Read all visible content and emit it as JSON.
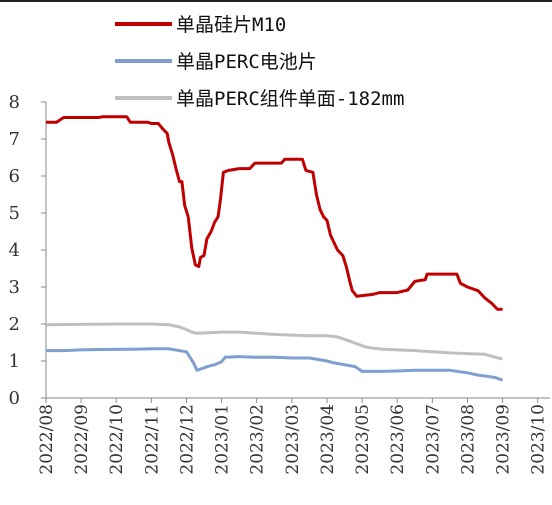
{
  "chart_data": {
    "type": "line",
    "title": "",
    "xlabel": "",
    "ylabel": "",
    "ylim": [
      0,
      8
    ],
    "yticks": [
      "0",
      "1",
      "2",
      "3",
      "4",
      "5",
      "6",
      "7",
      "8"
    ],
    "categories": [
      "2022/08",
      "2022/09",
      "2022/10",
      "2022/11",
      "2022/12",
      "2023/01",
      "2023/02",
      "2023/03",
      "2023/04",
      "2023/05",
      "2023/06",
      "2023/07",
      "2023/08",
      "2023/09",
      "2023/10"
    ],
    "legend_position": "top",
    "series": [
      {
        "name": "单晶硅片M10",
        "color": "#C00000",
        "points": [
          [
            0,
            7.45
          ],
          [
            0.3,
            7.45
          ],
          [
            0.5,
            7.58
          ],
          [
            1.5,
            7.58
          ],
          [
            1.6,
            7.6
          ],
          [
            2.3,
            7.6
          ],
          [
            2.4,
            7.45
          ],
          [
            2.9,
            7.45
          ],
          [
            3,
            7.42
          ],
          [
            3.2,
            7.42
          ],
          [
            3.3,
            7.3
          ],
          [
            3.45,
            7.15
          ],
          [
            3.5,
            6.9
          ],
          [
            3.6,
            6.6
          ],
          [
            3.7,
            6.2
          ],
          [
            3.8,
            5.85
          ],
          [
            3.87,
            5.85
          ],
          [
            3.95,
            5.2
          ],
          [
            4.05,
            4.9
          ],
          [
            4.15,
            4.05
          ],
          [
            4.25,
            3.6
          ],
          [
            4.35,
            3.55
          ],
          [
            4.4,
            3.8
          ],
          [
            4.5,
            3.85
          ],
          [
            4.58,
            4.3
          ],
          [
            4.7,
            4.5
          ],
          [
            4.8,
            4.75
          ],
          [
            4.9,
            4.9
          ],
          [
            4.97,
            5.4
          ],
          [
            5.05,
            6.1
          ],
          [
            5.2,
            6.15
          ],
          [
            5.5,
            6.2
          ],
          [
            5.8,
            6.2
          ],
          [
            5.95,
            6.35
          ],
          [
            6.7,
            6.35
          ],
          [
            6.8,
            6.45
          ],
          [
            7.3,
            6.45
          ],
          [
            7.4,
            6.15
          ],
          [
            7.6,
            6.1
          ],
          [
            7.7,
            5.5
          ],
          [
            7.8,
            5.1
          ],
          [
            7.9,
            4.9
          ],
          [
            8,
            4.8
          ],
          [
            8.1,
            4.4
          ],
          [
            8.2,
            4.2
          ],
          [
            8.3,
            4.0
          ],
          [
            8.45,
            3.85
          ],
          [
            8.55,
            3.55
          ],
          [
            8.65,
            3.15
          ],
          [
            8.72,
            2.9
          ],
          [
            8.85,
            2.75
          ],
          [
            9.3,
            2.8
          ],
          [
            9.5,
            2.85
          ],
          [
            10,
            2.85
          ],
          [
            10.3,
            2.92
          ],
          [
            10.5,
            3.15
          ],
          [
            10.8,
            3.2
          ],
          [
            10.85,
            3.35
          ],
          [
            11.7,
            3.35
          ],
          [
            11.8,
            3.1
          ],
          [
            12,
            3.0
          ],
          [
            12.3,
            2.9
          ],
          [
            12.5,
            2.7
          ],
          [
            12.7,
            2.55
          ],
          [
            12.85,
            2.4
          ],
          [
            13,
            2.4
          ]
        ]
      },
      {
        "name": "单晶PERC电池片",
        "color": "#7F9FCF",
        "points": [
          [
            0,
            1.28
          ],
          [
            0.5,
            1.28
          ],
          [
            1,
            1.3
          ],
          [
            1.5,
            1.31
          ],
          [
            2.5,
            1.32
          ],
          [
            3,
            1.33
          ],
          [
            3.5,
            1.33
          ],
          [
            3.8,
            1.28
          ],
          [
            4,
            1.25
          ],
          [
            4.1,
            1.1
          ],
          [
            4.2,
            0.95
          ],
          [
            4.3,
            0.75
          ],
          [
            4.4,
            0.78
          ],
          [
            4.6,
            0.85
          ],
          [
            4.8,
            0.9
          ],
          [
            5,
            0.98
          ],
          [
            5.1,
            1.1
          ],
          [
            5.5,
            1.12
          ],
          [
            6,
            1.1
          ],
          [
            6.5,
            1.1
          ],
          [
            7,
            1.08
          ],
          [
            7.5,
            1.08
          ],
          [
            8,
            1.0
          ],
          [
            8.2,
            0.95
          ],
          [
            8.5,
            0.9
          ],
          [
            8.8,
            0.85
          ],
          [
            9,
            0.72
          ],
          [
            9.5,
            0.72
          ],
          [
            10,
            0.73
          ],
          [
            10.5,
            0.75
          ],
          [
            11,
            0.75
          ],
          [
            11.5,
            0.75
          ],
          [
            12,
            0.68
          ],
          [
            12.3,
            0.62
          ],
          [
            12.6,
            0.58
          ],
          [
            12.8,
            0.55
          ],
          [
            13,
            0.48
          ]
        ]
      },
      {
        "name": "单晶PERC组件单面-182mm",
        "color": "#BFBFBF",
        "points": [
          [
            0,
            1.98
          ],
          [
            1,
            1.99
          ],
          [
            2,
            2.0
          ],
          [
            3,
            2.0
          ],
          [
            3.5,
            1.98
          ],
          [
            3.8,
            1.92
          ],
          [
            4,
            1.85
          ],
          [
            4.15,
            1.78
          ],
          [
            4.3,
            1.75
          ],
          [
            5,
            1.78
          ],
          [
            5.5,
            1.78
          ],
          [
            6,
            1.75
          ],
          [
            6.5,
            1.72
          ],
          [
            7,
            1.7
          ],
          [
            7.5,
            1.68
          ],
          [
            8,
            1.68
          ],
          [
            8.3,
            1.65
          ],
          [
            8.6,
            1.55
          ],
          [
            8.9,
            1.45
          ],
          [
            9.1,
            1.38
          ],
          [
            9.3,
            1.35
          ],
          [
            9.6,
            1.32
          ],
          [
            10,
            1.3
          ],
          [
            10.5,
            1.28
          ],
          [
            11,
            1.25
          ],
          [
            11.5,
            1.22
          ],
          [
            12,
            1.2
          ],
          [
            12.5,
            1.18
          ],
          [
            12.8,
            1.1
          ],
          [
            13,
            1.05
          ]
        ]
      }
    ]
  }
}
